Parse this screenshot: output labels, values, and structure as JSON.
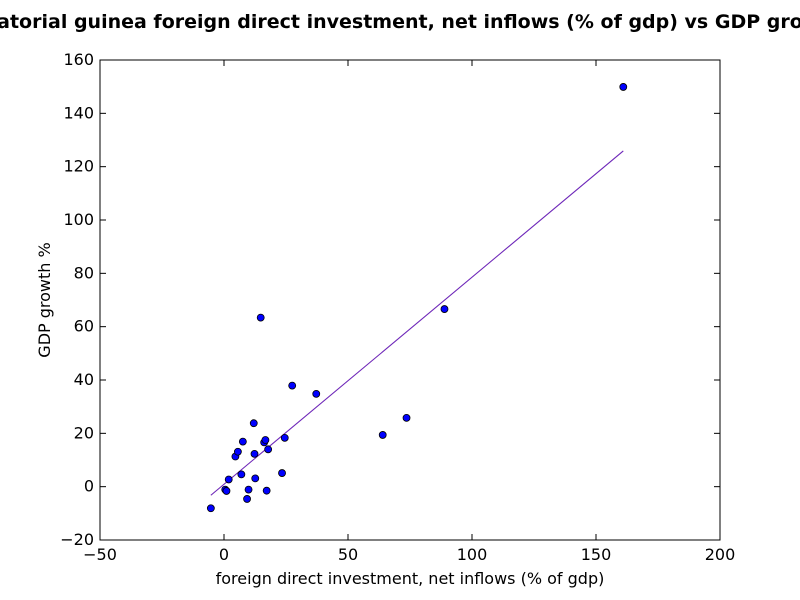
{
  "chart_data": {
    "type": "scatter",
    "title": "Equatorial guinea foreign direct investment, net inflows (% of gdp) vs GDP growth",
    "xlabel": "foreign direct investment, net inflows (% of gdp)",
    "ylabel": "GDP growth %",
    "xlim": [
      -50,
      200
    ],
    "ylim": [
      -20,
      160
    ],
    "xticks": [
      -50,
      0,
      50,
      100,
      150,
      200
    ],
    "yticks": [
      -20,
      0,
      20,
      40,
      60,
      80,
      100,
      120,
      140,
      160
    ],
    "xtick_labels": [
      "−50",
      "0",
      "50",
      "100",
      "150",
      "200"
    ],
    "ytick_labels": [
      "−20",
      "0",
      "20",
      "40",
      "60",
      "80",
      "100",
      "120",
      "140",
      "160"
    ],
    "grid": false,
    "legend": "none",
    "series": [
      {
        "points": [
          {
            "x": -5.3,
            "y": -8.1
          },
          {
            "x": 0.5,
            "y": -1.1
          },
          {
            "x": 1.0,
            "y": -1.6
          },
          {
            "x": 1.9,
            "y": 2.7
          },
          {
            "x": 4.6,
            "y": 11.3
          },
          {
            "x": 5.6,
            "y": 13.1
          },
          {
            "x": 7.0,
            "y": 4.6
          },
          {
            "x": 7.6,
            "y": 16.9
          },
          {
            "x": 9.3,
            "y": -4.6
          },
          {
            "x": 9.9,
            "y": -1.1
          },
          {
            "x": 12.0,
            "y": 23.8
          },
          {
            "x": 12.3,
            "y": 12.3
          },
          {
            "x": 12.6,
            "y": 3.1
          },
          {
            "x": 14.8,
            "y": 63.4
          },
          {
            "x": 16.2,
            "y": 16.6
          },
          {
            "x": 16.7,
            "y": 17.5
          },
          {
            "x": 17.2,
            "y": -1.5
          },
          {
            "x": 17.8,
            "y": 14.0
          },
          {
            "x": 23.4,
            "y": 5.1
          },
          {
            "x": 24.5,
            "y": 18.3
          },
          {
            "x": 27.5,
            "y": 37.9
          },
          {
            "x": 37.2,
            "y": 34.8
          },
          {
            "x": 64.0,
            "y": 19.4
          },
          {
            "x": 73.6,
            "y": 25.8
          },
          {
            "x": 88.9,
            "y": 66.6
          },
          {
            "x": 161.0,
            "y": 149.9
          }
        ],
        "marker_color": "#0000ff"
      }
    ],
    "trendline": {
      "x": [
        -5.3,
        161.0
      ],
      "y": [
        -3.2,
        125.9
      ],
      "colors": [
        "#ff0000",
        "#0000ff"
      ]
    }
  }
}
